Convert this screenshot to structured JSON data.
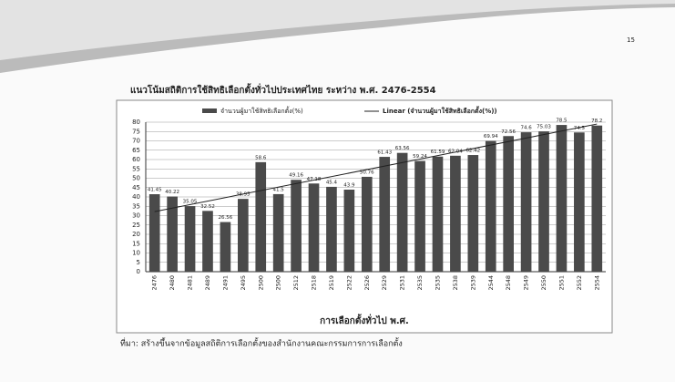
{
  "page_number": "15",
  "source": "ที่มา: สร้างขึ้นจากข้อมูลสถิติการเลือกตั้งของสำนักงานคณะกรรมการการเลือกตั้ง",
  "chart_data": {
    "type": "bar",
    "title": "แนวโน้มสถิติการใช้สิทธิเลือกตั้งทั่วไปประเทศไทย ระหว่าง พ.ศ. 2476-2554",
    "x_label": "การเลือกตั้งทั่วไป พ.ศ.",
    "categories": [
      "2476",
      "2480",
      "2481",
      "2489",
      "2491",
      "2495",
      "2500",
      "2500",
      "2512",
      "2518",
      "2519",
      "2522",
      "2526",
      "2529",
      "2531",
      "2535",
      "2535",
      "2538",
      "2539",
      "2544",
      "2548",
      "2549",
      "2550",
      "2551",
      "2552",
      "2554"
    ],
    "series": [
      {
        "name": "จำนวนผู้มาใช้สิทธิเลือกตั้ง(%)",
        "color": "#4a4a4a",
        "values": [
          41.45,
          40.22,
          35.05,
          32.52,
          26.56,
          38.95,
          58.6,
          41.5,
          49.16,
          47.18,
          45.4,
          43.9,
          50.76,
          61.43,
          63.56,
          59.24,
          61.59,
          62.04,
          62.42,
          69.94,
          72.56,
          74.6,
          75.03,
          78.5,
          74.5,
          78.2
        ]
      }
    ],
    "trendline": {
      "name": "Linear (จำนวนผู้มาใช้สิทธิเลือกตั้ง(%))",
      "color": "#222222"
    },
    "ylim": [
      0,
      80
    ],
    "yticks": [
      0,
      5,
      10,
      15,
      20,
      25,
      30,
      35,
      40,
      45,
      50,
      55,
      60,
      65,
      70,
      75,
      80
    ],
    "grid": true
  }
}
